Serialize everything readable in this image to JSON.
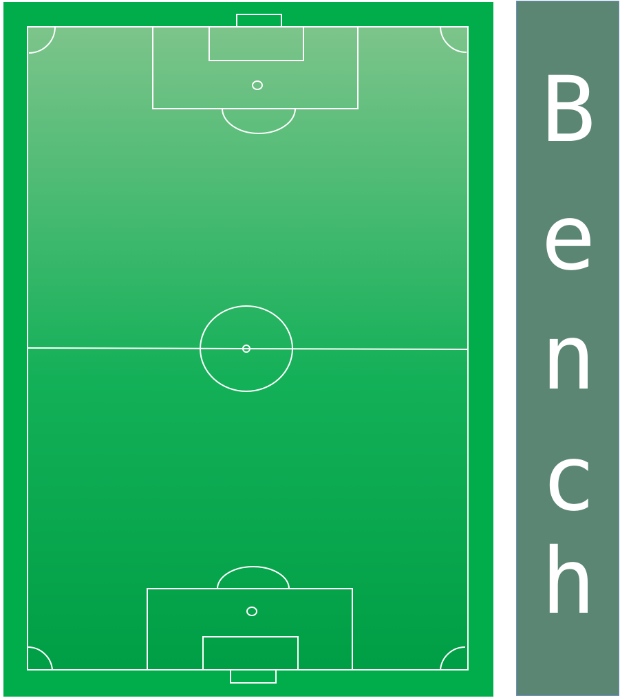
{
  "pitch": {
    "border_color": "#00ad4a",
    "turf_top_color": "#7dc48b",
    "turf_mid_color": "#13b058",
    "turf_bottom_color": "#009e45",
    "line_color": "#ffffff"
  },
  "bench": {
    "label": "Bench",
    "letters": [
      "B",
      "e",
      "n",
      "c",
      "h"
    ],
    "background_color": "#5a8673",
    "border_color": "#6f8fbf",
    "text_color": "#ffffff"
  }
}
